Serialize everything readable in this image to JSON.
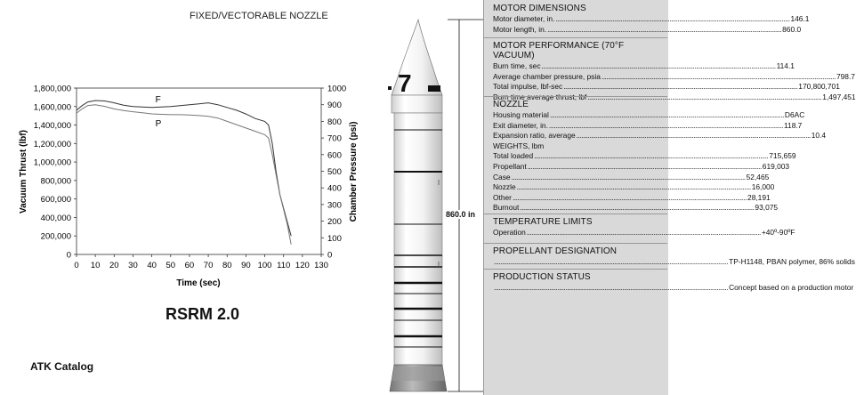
{
  "chart_title": "FIXED/VECTORABLE NOZZLE",
  "document_title": "RSRM 2.0",
  "footer": "ATK Catalog",
  "rocket": {
    "length_label": "860.0 in",
    "stage_marking": "7"
  },
  "chart_data": {
    "type": "line",
    "title": "",
    "xlabel": "Time (sec)",
    "ylabel": "Vacuum Thrust (lbf)",
    "y2label": "Chamber Pressure (psi)",
    "xlim": [
      0,
      130
    ],
    "ylim": [
      0,
      1800000
    ],
    "y2lim": [
      0,
      1000
    ],
    "x_ticks": [
      "0",
      "10",
      "20",
      "30",
      "40",
      "50",
      "60",
      "70",
      "80",
      "90",
      "100",
      "110",
      "120",
      "130"
    ],
    "y_ticks": [
      "0",
      "200,000",
      "400,000",
      "600,000",
      "800,000",
      "1,000,000",
      "1,200,000",
      "1,400,000",
      "1,600,000",
      "1,800,000"
    ],
    "y2_ticks": [
      "0",
      "100",
      "200",
      "300",
      "400",
      "500",
      "600",
      "700",
      "800",
      "900",
      "1000"
    ],
    "grid": false,
    "series": [
      {
        "name": "F",
        "axis": "left",
        "x": [
          0,
          3,
          6,
          10,
          15,
          20,
          25,
          30,
          35,
          40,
          45,
          50,
          55,
          60,
          65,
          70,
          75,
          80,
          85,
          90,
          95,
          100,
          102,
          104,
          106,
          108,
          110,
          112,
          114
        ],
        "y": [
          1560000,
          1610000,
          1650000,
          1665000,
          1660000,
          1640000,
          1615000,
          1600000,
          1595000,
          1590000,
          1595000,
          1600000,
          1610000,
          1620000,
          1630000,
          1640000,
          1620000,
          1590000,
          1560000,
          1520000,
          1470000,
          1440000,
          1400000,
          1200000,
          900000,
          650000,
          500000,
          350000,
          200000
        ]
      },
      {
        "name": "P",
        "axis": "right",
        "x": [
          0,
          3,
          6,
          10,
          15,
          20,
          25,
          30,
          35,
          40,
          45,
          50,
          55,
          60,
          65,
          70,
          75,
          80,
          85,
          90,
          95,
          100,
          102,
          104,
          106,
          108,
          110,
          112,
          114
        ],
        "y": [
          850,
          875,
          895,
          900,
          890,
          875,
          865,
          858,
          852,
          845,
          842,
          840,
          840,
          838,
          835,
          830,
          820,
          800,
          780,
          760,
          740,
          720,
          700,
          600,
          480,
          360,
          270,
          180,
          60
        ]
      }
    ]
  },
  "spec": {
    "motor_dimensions": {
      "heading": "MOTOR DIMENSIONS",
      "rows": [
        {
          "label": "Motor diameter, in.",
          "value": "146.1"
        },
        {
          "label": "Motor length, in.",
          "value": "860.0"
        }
      ]
    },
    "motor_performance": {
      "heading": "MOTOR PERFORMANCE (70°F VACUUM)",
      "rows": [
        {
          "label": "Burn time, sec",
          "value": "114.1"
        },
        {
          "label": "Average chamber pressure, psia",
          "value": "798.7"
        },
        {
          "label": "Total impulse, lbf-sec",
          "value": "170,800,701"
        },
        {
          "label": "Burn time average thrust, lbf",
          "value": "1,497,451"
        }
      ]
    },
    "nozzle": {
      "heading": "NOZZLE",
      "rows": [
        {
          "label": "Housing material",
          "value": "D6AC"
        },
        {
          "label": "Exit diameter, in.",
          "value": "118.7"
        },
        {
          "label": "Expansion ratio, average",
          "value": "10.4"
        }
      ],
      "weights_heading": "WEIGHTS, lbm",
      "weights": [
        {
          "label": "Total loaded",
          "value": "715,659"
        },
        {
          "label": "Propellant",
          "value": "619,003"
        },
        {
          "label": "Case",
          "value": "52,465"
        },
        {
          "label": "Nozzle",
          "value": "16,000"
        },
        {
          "label": "Other",
          "value": "28,191"
        },
        {
          "label": "Burnout",
          "value": "93,075"
        }
      ]
    },
    "temperature_limits": {
      "heading": "TEMPERATURE LIMITS",
      "rows": [
        {
          "label": "Operation",
          "value": "+40º-90ºF"
        }
      ]
    },
    "propellant_designation": {
      "heading": "PROPELLANT DESIGNATION",
      "text": "TP-H1148, PBAN polymer, 86% solids"
    },
    "production_status": {
      "heading": "PRODUCTION STATUS",
      "text": "Concept based on a production motor"
    }
  }
}
